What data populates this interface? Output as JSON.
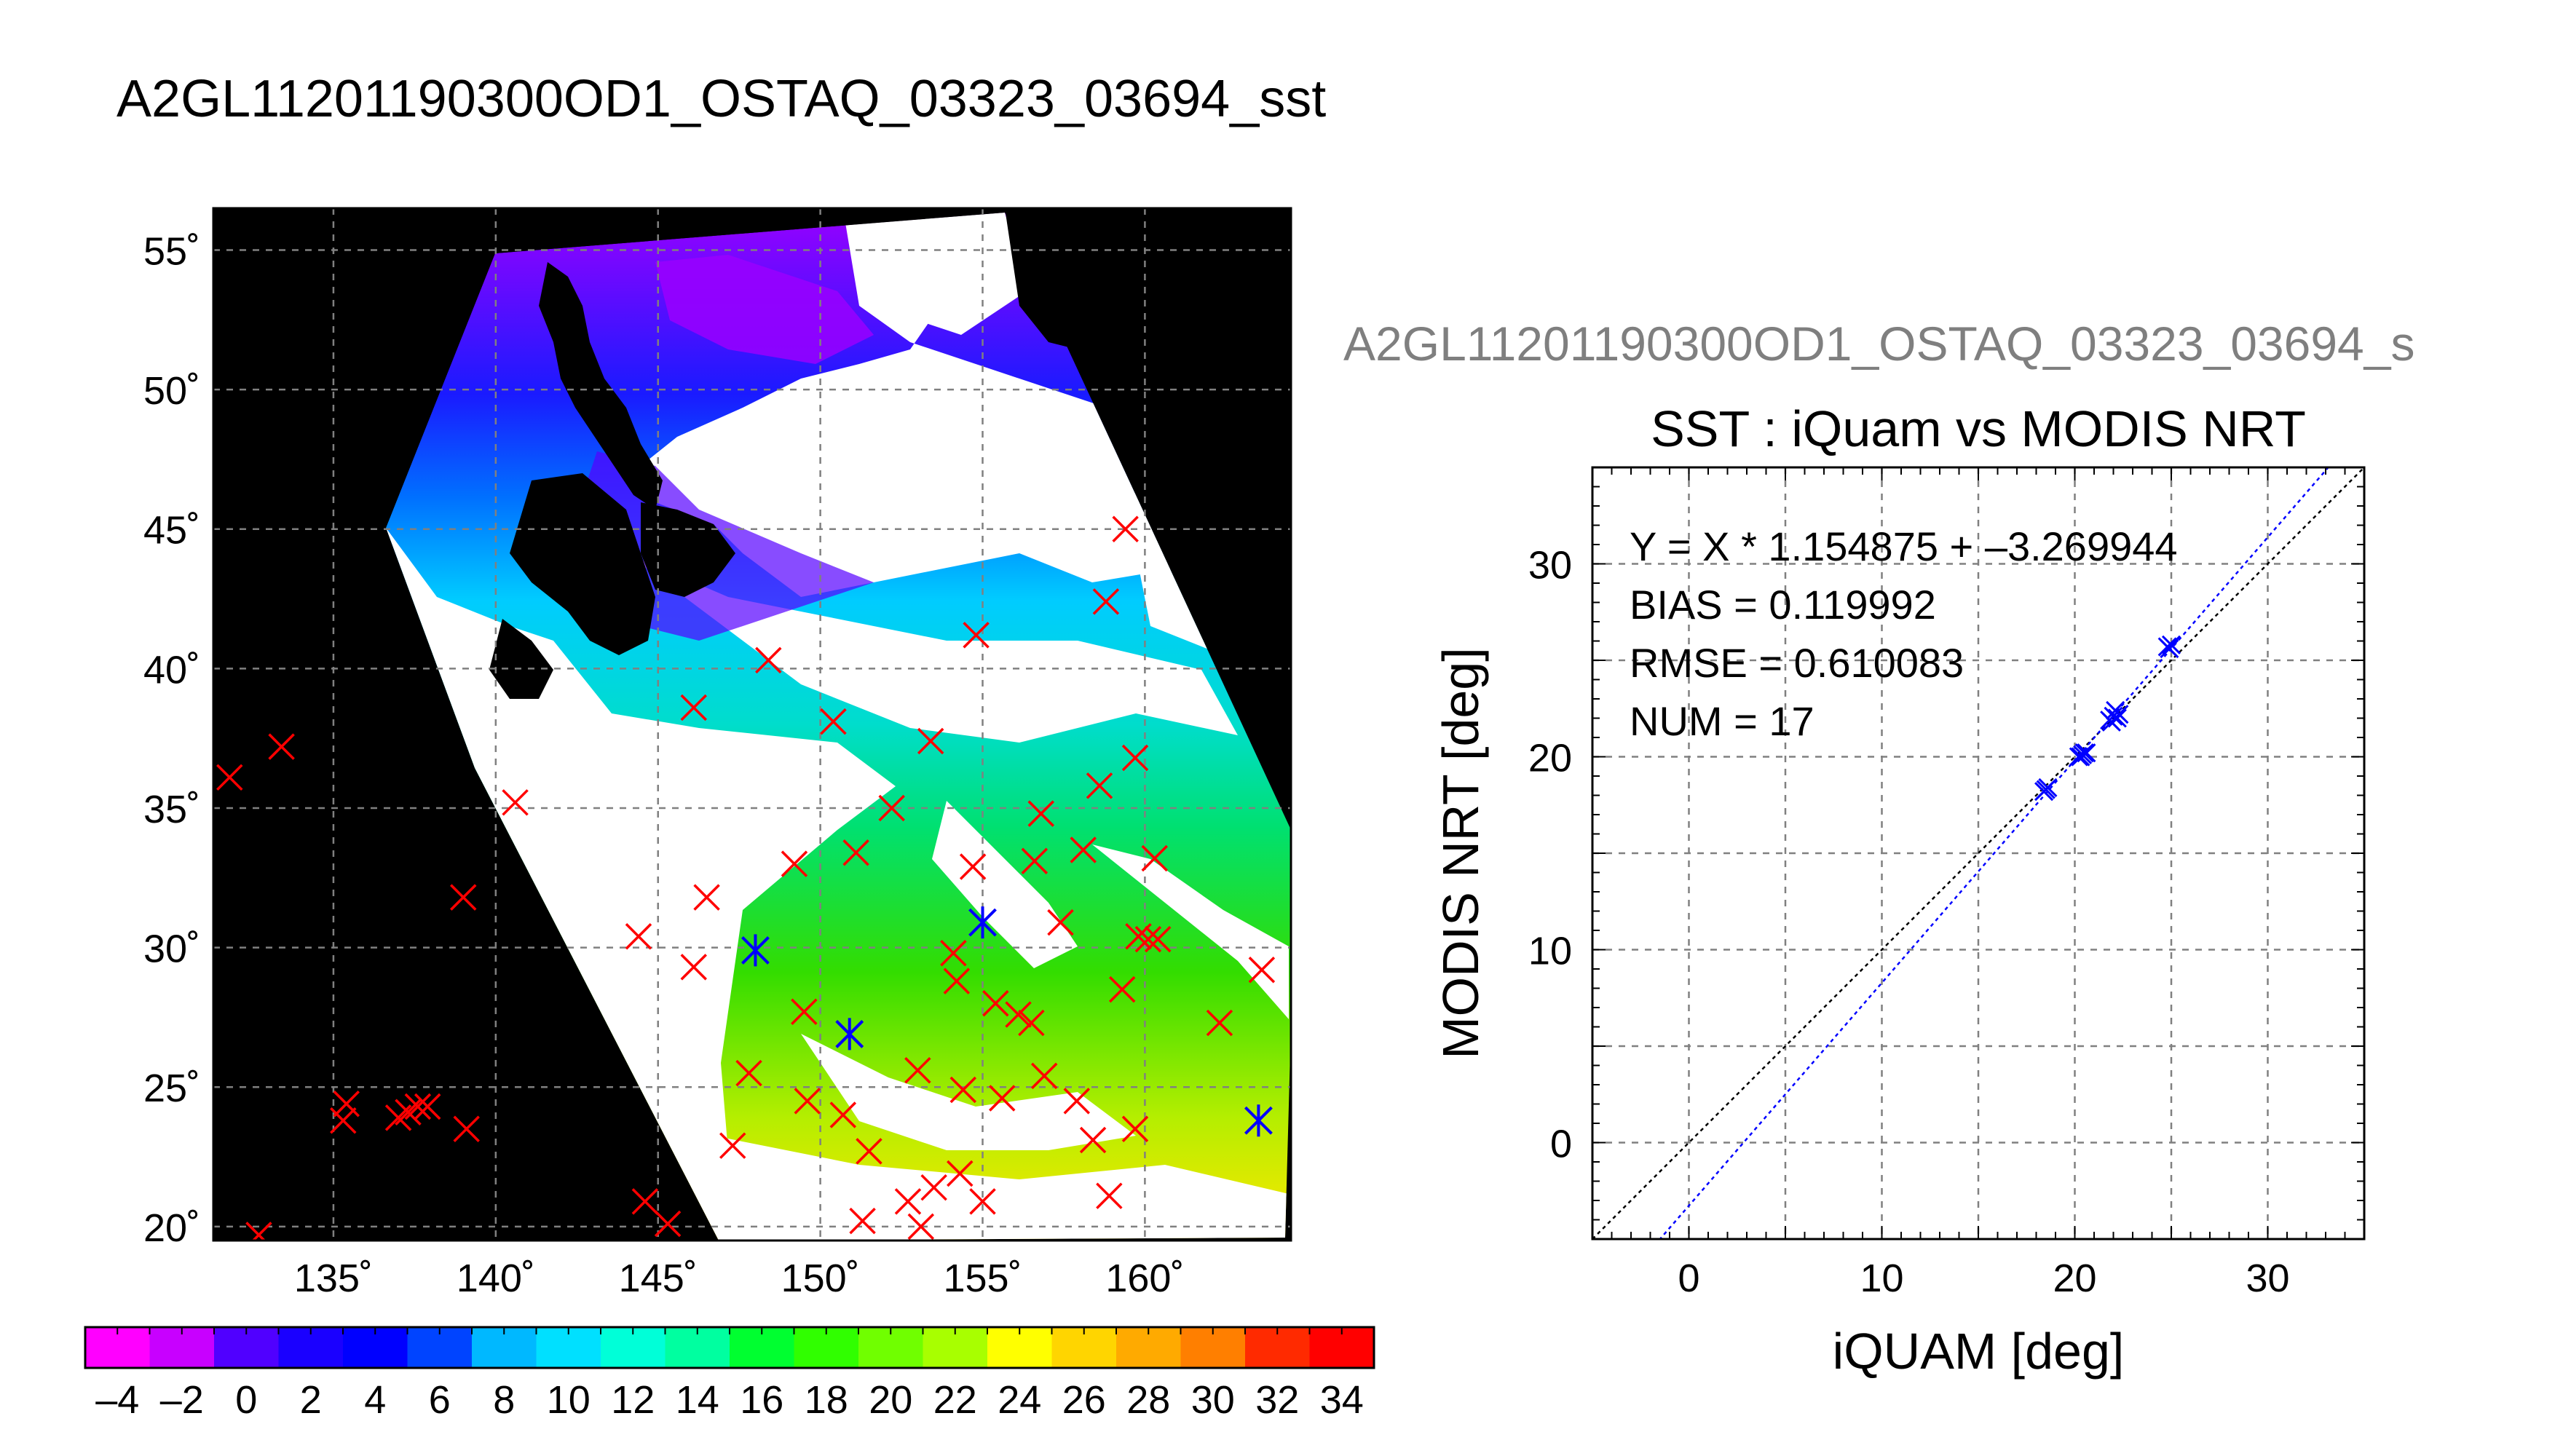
{
  "page_title": "A2GL11201190300OD1_OSTAQ_03323_03694_sst",
  "colors": {
    "land": "#000000",
    "cloud": "#ffffff",
    "grid": "#808080",
    "buoy_marker": "#ff0000",
    "matched_marker": "#0000ff",
    "fit_line": "#0000ff",
    "one_to_one_line": "#000000",
    "scatter_subtitle": "#7f7f7f"
  },
  "map": {
    "lon_ticks": [
      "135˚",
      "140˚",
      "145˚",
      "150˚",
      "155˚",
      "160˚"
    ],
    "lat_ticks": [
      "55˚",
      "50˚",
      "45˚",
      "40˚",
      "35˚",
      "30˚",
      "25˚",
      "20˚"
    ],
    "lon_range": [
      131.3,
      164.5
    ],
    "lat_range": [
      19.5,
      56.5
    ],
    "grid": true,
    "buoys": [
      [
        131.8,
        36.1
      ],
      [
        133.4,
        37.2
      ],
      [
        132.7,
        19.7
      ],
      [
        135.4,
        24.4
      ],
      [
        135.3,
        23.8
      ],
      [
        137.0,
        23.9
      ],
      [
        137.3,
        24.1
      ],
      [
        137.6,
        24.3
      ],
      [
        137.9,
        24.3
      ],
      [
        139.0,
        31.8
      ],
      [
        139.1,
        23.5
      ],
      [
        140.6,
        35.2
      ],
      [
        144.4,
        30.4
      ],
      [
        144.6,
        20.9
      ],
      [
        145.3,
        20.1
      ],
      [
        146.1,
        38.6
      ],
      [
        146.1,
        29.3
      ],
      [
        146.5,
        31.8
      ],
      [
        147.3,
        22.9
      ],
      [
        148.0,
        29.9
      ],
      [
        149.5,
        27.7
      ],
      [
        149.6,
        24.5
      ],
      [
        150.4,
        38.1
      ],
      [
        150.7,
        24.0
      ],
      [
        150.9,
        26.9
      ],
      [
        151.3,
        20.2
      ],
      [
        152.7,
        20.9
      ],
      [
        153.0,
        25.6
      ],
      [
        153.1,
        20.0
      ],
      [
        153.5,
        21.4
      ],
      [
        154.1,
        29.8
      ],
      [
        154.2,
        28.8
      ],
      [
        154.3,
        21.9
      ],
      [
        154.7,
        32.9
      ],
      [
        155.0,
        30.9
      ],
      [
        155.0,
        20.9
      ],
      [
        155.4,
        28.0
      ],
      [
        155.6,
        24.6
      ],
      [
        156.1,
        27.6
      ],
      [
        156.5,
        27.3
      ],
      [
        156.6,
        33.1
      ],
      [
        157.4,
        30.9
      ],
      [
        157.9,
        24.5
      ],
      [
        158.1,
        33.5
      ],
      [
        158.4,
        23.1
      ],
      [
        158.6,
        35.8
      ],
      [
        158.8,
        42.4
      ],
      [
        158.9,
        21.1
      ],
      [
        159.3,
        28.5
      ],
      [
        159.4,
        45.0
      ],
      [
        159.7,
        36.8
      ],
      [
        159.8,
        30.4
      ],
      [
        160.1,
        30.3
      ],
      [
        160.3,
        33.2
      ],
      [
        160.4,
        30.3
      ],
      [
        162.3,
        27.3
      ],
      [
        163.5,
        23.8
      ],
      [
        163.6,
        29.2
      ],
      [
        154.8,
        41.2
      ],
      [
        156.8,
        34.8
      ],
      [
        152.2,
        35.0
      ],
      [
        149.2,
        33.0
      ],
      [
        151.1,
        33.4
      ],
      [
        153.4,
        37.4
      ],
      [
        148.4,
        40.3
      ],
      [
        154.4,
        24.9
      ],
      [
        156.9,
        25.4
      ],
      [
        159.7,
        23.5
      ],
      [
        151.5,
        22.7
      ],
      [
        147.8,
        25.5
      ]
    ],
    "matched": [
      [
        148.0,
        29.9
      ],
      [
        150.9,
        26.9
      ],
      [
        155.0,
        30.9
      ],
      [
        163.5,
        23.8
      ]
    ]
  },
  "colorbar": {
    "min": -5,
    "max": 35,
    "tick_labels": [
      "–4",
      "–2",
      "0",
      "2",
      "4",
      "6",
      "8",
      "10",
      "12",
      "14",
      "16",
      "18",
      "20",
      "22",
      "24",
      "26",
      "28",
      "30",
      "32",
      "34"
    ],
    "tick_values": [
      -4,
      -2,
      0,
      2,
      4,
      6,
      8,
      10,
      12,
      14,
      16,
      18,
      20,
      22,
      24,
      26,
      28,
      30,
      32,
      34
    ]
  },
  "scatter": {
    "subtitle": "A2GL11201190300OD1_OSTAQ_03323_03694_s",
    "title": "SST : iQuam vs MODIS NRT",
    "xlabel": "iQUAM [deg]",
    "ylabel": "MODIS NRT [deg]",
    "stats": {
      "equation": "Y = X * 1.154875 + –3.269944",
      "bias": "BIAS = 0.119992",
      "rmse": "RMSE = 0.610083",
      "num": "NUM = 17"
    },
    "x_ticks": [
      "0",
      "10",
      "20",
      "30"
    ],
    "y_ticks": [
      "30",
      "20",
      "10",
      "0"
    ]
  },
  "chart_data": [
    {
      "type": "scatter",
      "title": "SST : iQuam vs MODIS NRT",
      "xlabel": "iQUAM [deg]",
      "ylabel": "MODIS NRT [deg]",
      "xlim": [
        -5,
        35
      ],
      "ylim": [
        -5,
        35
      ],
      "x_ticks": [
        0,
        10,
        20,
        30
      ],
      "y_ticks": [
        0,
        10,
        20,
        30
      ],
      "grid": true,
      "series": [
        {
          "x": [
            18.4,
            18.6,
            20.3,
            20.5,
            21.9,
            22.0,
            22.1,
            24.9,
            25.0,
            20.4,
            22.2,
            18.5,
            20.6,
            21.8,
            24.8,
            20.2,
            22.3
          ],
          "y": [
            18.2,
            18.4,
            20.0,
            20.2,
            21.8,
            22.1,
            22.4,
            25.6,
            25.8,
            20.1,
            22.0,
            18.3,
            20.2,
            21.9,
            25.7,
            20.0,
            22.2
          ]
        }
      ],
      "fit_line": {
        "slope": 1.154875,
        "intercept": -3.269944
      },
      "reference_line": {
        "slope": 1,
        "intercept": 0
      },
      "annotations": [
        "Y = X * 1.154875 + –3.269944",
        "BIAS = 0.119992",
        "RMSE = 0.610083",
        "NUM = 17"
      ]
    },
    {
      "type": "heatmap",
      "title": "A2GL11201190300OD1_OSTAQ_03323_03694_sst",
      "xlabel": "",
      "ylabel": "",
      "x_ticks": [
        "135˚",
        "140˚",
        "145˚",
        "150˚",
        "155˚",
        "160˚"
      ],
      "y_ticks": [
        "20˚",
        "25˚",
        "30˚",
        "35˚",
        "40˚",
        "45˚",
        "50˚",
        "55˚"
      ],
      "colorbar_range": [
        -5,
        35
      ],
      "grid": true
    }
  ]
}
